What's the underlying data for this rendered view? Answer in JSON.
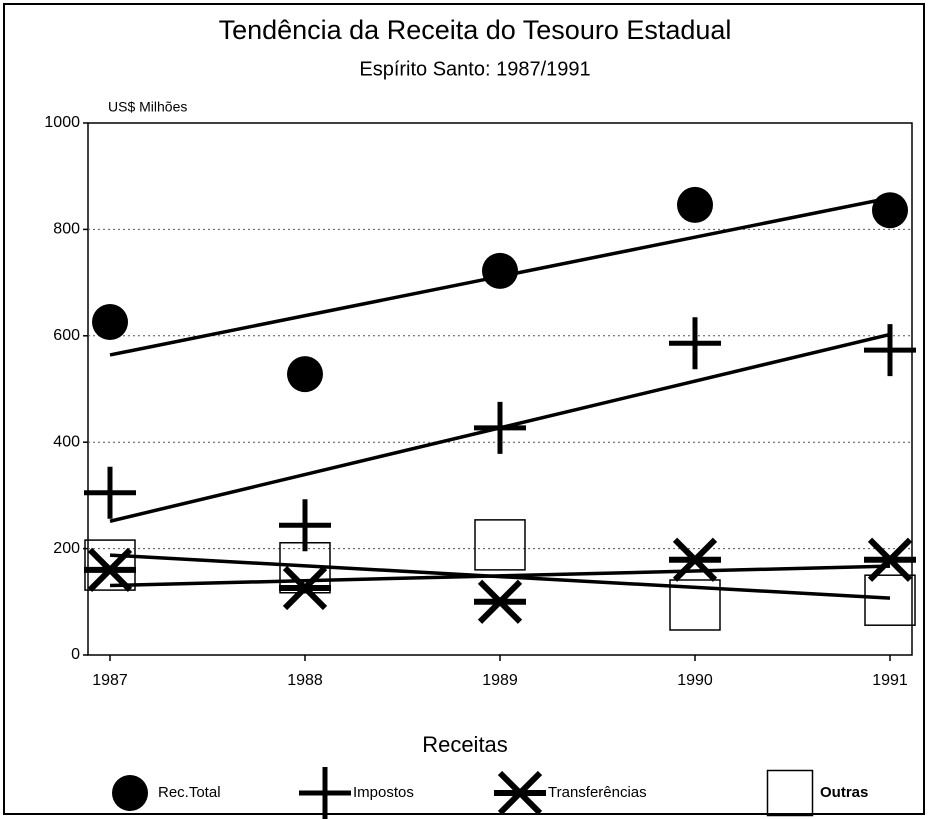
{
  "chart_data": {
    "type": "scatter",
    "title": "Tendência da Receita do Tesouro Estadual",
    "subtitle": "Espírito Santo: 1987/1991",
    "y_label": "US$ Milhões",
    "legend_title": "Receitas",
    "x": [
      1987,
      1988,
      1989,
      1990,
      1991
    ],
    "xlim": [
      1987,
      1991
    ],
    "xticks": [
      1987,
      1988,
      1989,
      1990,
      1991
    ],
    "ylim": [
      0,
      1000
    ],
    "yticks": [
      0,
      200,
      400,
      600,
      800,
      1000
    ],
    "grid": true,
    "trend_lines": true,
    "series": [
      {
        "name": "Rec.Total",
        "color": "#000000",
        "values": [
          626,
          528,
          722,
          846,
          836
        ]
      },
      {
        "name": "Impostos",
        "color": "#000000",
        "values": [
          305,
          244,
          427,
          586,
          573
        ]
      },
      {
        "name": "Transferências",
        "color": "#000000",
        "values": [
          160,
          126,
          100,
          179,
          179
        ]
      },
      {
        "name": "Outras",
        "color": "#000000",
        "values": [
          169,
          164,
          207,
          94,
          103
        ]
      }
    ]
  }
}
